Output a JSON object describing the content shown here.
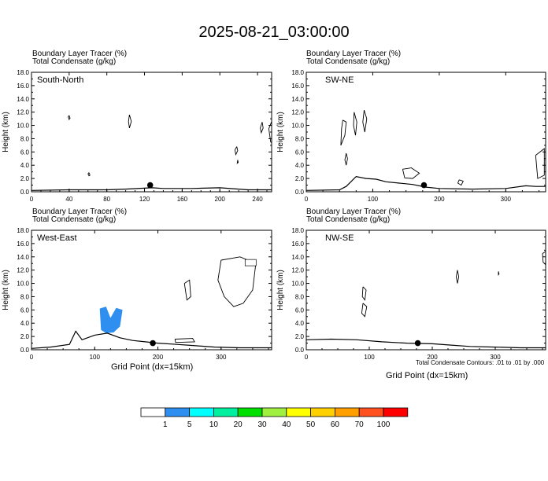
{
  "title": "2025-08-21_03:00:00",
  "footnote": "Total Condensate Contours: .01 to .01 by .000",
  "colorbar": {
    "colors": [
      "#ffffff",
      "#2f8ff0",
      "#00ffff",
      "#00f0a0",
      "#00e000",
      "#a0f040",
      "#ffff00",
      "#ffd000",
      "#ffa000",
      "#ff5020",
      "#ff0000"
    ],
    "labels": [
      "1",
      "5",
      "10",
      "20",
      "30",
      "40",
      "50",
      "60",
      "70",
      "100"
    ]
  },
  "chart_data": [
    {
      "type": "contour",
      "line1": "Boundary Layer Tracer   (%)",
      "line2": "Total Condensate   (g/kg)",
      "panel_label": "South-North",
      "ylabel": "Height (km)",
      "xlabel": "",
      "xlim": [
        0,
        255
      ],
      "ylim": [
        0,
        18
      ],
      "xticks": [
        0,
        40,
        80,
        120,
        160,
        200,
        240
      ],
      "yticks": [
        "0.0",
        "2.0",
        "4.0",
        "6.0",
        "8.0",
        "10.0",
        "12.0",
        "14.0",
        "16.0",
        "18.0"
      ],
      "marker": [
        126,
        1.0
      ],
      "terrain": [
        [
          0,
          0.2
        ],
        [
          40,
          0.3
        ],
        [
          80,
          0.3
        ],
        [
          100,
          0.4
        ],
        [
          128,
          0.6
        ],
        [
          140,
          0.5
        ],
        [
          170,
          0.5
        ],
        [
          200,
          0.6
        ],
        [
          230,
          0.3
        ],
        [
          255,
          0.3
        ]
      ],
      "contours": [
        [
          [
            40,
            11.5
          ],
          [
            41,
            11.1
          ],
          [
            40,
            10.9
          ],
          [
            39,
            11.3
          ],
          [
            40,
            11.5
          ]
        ],
        [
          [
            61,
            2.9
          ],
          [
            62,
            2.5
          ],
          [
            61,
            2.4
          ],
          [
            60,
            2.7
          ],
          [
            61,
            2.9
          ]
        ],
        [
          [
            104,
            11.6
          ],
          [
            106,
            10.6
          ],
          [
            104,
            9.6
          ],
          [
            103,
            10.6
          ],
          [
            104,
            11.6
          ]
        ],
        [
          [
            218,
            6.8
          ],
          [
            219,
            6.2
          ],
          [
            217,
            5.6
          ],
          [
            216,
            6.3
          ],
          [
            218,
            6.8
          ]
        ],
        [
          [
            219,
            4.8
          ],
          [
            219.5,
            4.4
          ],
          [
            218.5,
            4.3
          ],
          [
            219,
            4.8
          ]
        ],
        [
          [
            245,
            10.5
          ],
          [
            246,
            9.6
          ],
          [
            244,
            8.9
          ],
          [
            243,
            9.6
          ],
          [
            245,
            10.5
          ]
        ],
        [
          [
            255,
            10.6
          ],
          [
            252,
            9.5
          ],
          [
            254,
            7.5
          ],
          [
            255,
            7.4
          ]
        ]
      ],
      "shaded": []
    },
    {
      "type": "contour",
      "line1": "Boundary Layer Tracer   (%)",
      "line2": "Total Condensate   (g/kg)",
      "panel_label": "SW-NE",
      "ylabel": "Height (km)",
      "xlabel": "",
      "xlim": [
        0,
        360
      ],
      "ylim": [
        0,
        18
      ],
      "xticks": [
        0,
        100,
        200,
        300
      ],
      "yticks": [
        "0.0",
        "2.0",
        "4.0",
        "6.0",
        "8.0",
        "10.0",
        "12.0",
        "14.0",
        "16.0",
        "18.0"
      ],
      "marker": [
        177,
        1.0
      ],
      "terrain": [
        [
          0,
          0.2
        ],
        [
          50,
          0.3
        ],
        [
          60,
          0.8
        ],
        [
          75,
          2.3
        ],
        [
          90,
          2.0
        ],
        [
          105,
          1.9
        ],
        [
          120,
          1.5
        ],
        [
          140,
          1.3
        ],
        [
          160,
          1.1
        ],
        [
          180,
          0.7
        ],
        [
          200,
          0.5
        ],
        [
          250,
          0.4
        ],
        [
          300,
          0.5
        ],
        [
          330,
          0.9
        ],
        [
          345,
          0.8
        ],
        [
          360,
          0.8
        ]
      ],
      "contours": [
        [
          [
            55,
            10.8
          ],
          [
            60,
            10.5
          ],
          [
            58,
            8.5
          ],
          [
            52,
            7.0
          ],
          [
            53,
            9.5
          ],
          [
            55,
            10.8
          ]
        ],
        [
          [
            72,
            12.0
          ],
          [
            76,
            10.5
          ],
          [
            74,
            8.5
          ],
          [
            71,
            10.0
          ],
          [
            72,
            12.0
          ]
        ],
        [
          [
            87,
            12.3
          ],
          [
            91,
            11.0
          ],
          [
            88,
            9.0
          ],
          [
            85,
            10.5
          ],
          [
            87,
            12.3
          ]
        ],
        [
          [
            60,
            5.8
          ],
          [
            62,
            5.0
          ],
          [
            60,
            4.0
          ],
          [
            58,
            4.8
          ],
          [
            60,
            5.8
          ]
        ],
        [
          [
            145,
            3.4
          ],
          [
            158,
            3.6
          ],
          [
            170,
            2.8
          ],
          [
            160,
            2.0
          ],
          [
            148,
            2.1
          ],
          [
            145,
            3.4
          ]
        ],
        [
          [
            230,
            1.8
          ],
          [
            236,
            1.6
          ],
          [
            233,
            1.0
          ],
          [
            228,
            1.3
          ],
          [
            230,
            1.8
          ]
        ],
        [
          [
            345,
            5.5
          ],
          [
            358,
            6.5
          ],
          [
            358,
            2.5
          ],
          [
            348,
            2.0
          ],
          [
            345,
            5.5
          ]
        ]
      ],
      "shaded": []
    },
    {
      "type": "contour",
      "line1": "Boundary Layer Tracer   (%)",
      "line2": "Total Condensate   (g/kg)",
      "panel_label": "West-East",
      "ylabel": "Height (km)",
      "xlabel": "Grid Point (dx=15km)",
      "xlim": [
        0,
        380
      ],
      "ylim": [
        0,
        18
      ],
      "xticks": [
        0,
        100,
        200,
        300
      ],
      "yticks": [
        "0.0",
        "2.0",
        "4.0",
        "6.0",
        "8.0",
        "10.0",
        "12.0",
        "14.0",
        "16.0",
        "18.0"
      ],
      "marker": [
        192,
        1.0
      ],
      "terrain": [
        [
          0,
          0.2
        ],
        [
          30,
          0.4
        ],
        [
          60,
          0.8
        ],
        [
          70,
          2.8
        ],
        [
          80,
          1.5
        ],
        [
          100,
          2.2
        ],
        [
          120,
          2.5
        ],
        [
          140,
          1.8
        ],
        [
          160,
          1.4
        ],
        [
          180,
          1.2
        ],
        [
          200,
          1.0
        ],
        [
          230,
          0.8
        ],
        [
          260,
          0.6
        ],
        [
          290,
          0.4
        ],
        [
          330,
          0.3
        ],
        [
          380,
          0.3
        ]
      ],
      "contours": [
        [
          [
            300,
            13.5
          ],
          [
            330,
            14.0
          ],
          [
            355,
            13.0
          ],
          [
            350,
            9.0
          ],
          [
            335,
            7.0
          ],
          [
            320,
            6.5
          ],
          [
            305,
            8.0
          ],
          [
            295,
            10.5
          ],
          [
            300,
            13.5
          ]
        ],
        [
          [
            242,
            10.0
          ],
          [
            250,
            10.5
          ],
          [
            252,
            8.0
          ],
          [
            246,
            7.5
          ],
          [
            242,
            10.0
          ]
        ],
        [
          [
            227,
            1.6
          ],
          [
            255,
            1.7
          ],
          [
            258,
            1.2
          ],
          [
            228,
            1.1
          ],
          [
            227,
            1.6
          ]
        ]
      ],
      "shaded": [
        [
          [
            108,
            6.2
          ],
          [
            118,
            6.5
          ],
          [
            125,
            4.8
          ],
          [
            134,
            6.3
          ],
          [
            144,
            6.0
          ],
          [
            140,
            3.5
          ],
          [
            130,
            2.6
          ],
          [
            118,
            2.5
          ],
          [
            110,
            3.0
          ],
          [
            108,
            6.2
          ]
        ]
      ]
    },
    {
      "type": "contour",
      "line1": "Boundary Layer Tracer   (%)",
      "line2": "Total Condensate   (g/kg)",
      "panel_label": "NW-SE",
      "ylabel": "Height (km)",
      "xlabel": "Grid Point (dx=15km)",
      "xlim": [
        0,
        380
      ],
      "ylim": [
        0,
        18
      ],
      "xticks": [
        0,
        100,
        200,
        300
      ],
      "yticks": [
        "0.0",
        "2.0",
        "4.0",
        "6.0",
        "8.0",
        "10.0",
        "12.0",
        "14.0",
        "16.0",
        "18.0"
      ],
      "marker": [
        177,
        1.0
      ],
      "terrain": [
        [
          0,
          1.5
        ],
        [
          40,
          1.6
        ],
        [
          80,
          1.5
        ],
        [
          120,
          1.2
        ],
        [
          160,
          1.0
        ],
        [
          200,
          0.9
        ],
        [
          230,
          0.7
        ],
        [
          260,
          0.5
        ],
        [
          300,
          0.4
        ],
        [
          340,
          0.3
        ],
        [
          380,
          0.3
        ]
      ],
      "contours": [
        [
          [
            90,
            9.5
          ],
          [
            95,
            9.0
          ],
          [
            93,
            7.5
          ],
          [
            89,
            8.0
          ],
          [
            90,
            9.5
          ]
        ],
        [
          [
            90,
            7.0
          ],
          [
            96,
            6.5
          ],
          [
            93,
            5.0
          ],
          [
            88,
            5.5
          ],
          [
            90,
            7.0
          ]
        ],
        [
          [
            240,
            12.0
          ],
          [
            242,
            11.0
          ],
          [
            240,
            10.0
          ],
          [
            238,
            11.0
          ],
          [
            240,
            12.0
          ]
        ],
        [
          [
            305,
            11.8
          ],
          [
            306,
            11.4
          ],
          [
            305,
            11.3
          ],
          [
            305,
            11.8
          ]
        ],
        [
          [
            375,
            14.5
          ],
          [
            380,
            14.8
          ],
          [
            380,
            12.8
          ],
          [
            376,
            13.2
          ],
          [
            375,
            14.5
          ]
        ]
      ],
      "shaded": []
    }
  ]
}
